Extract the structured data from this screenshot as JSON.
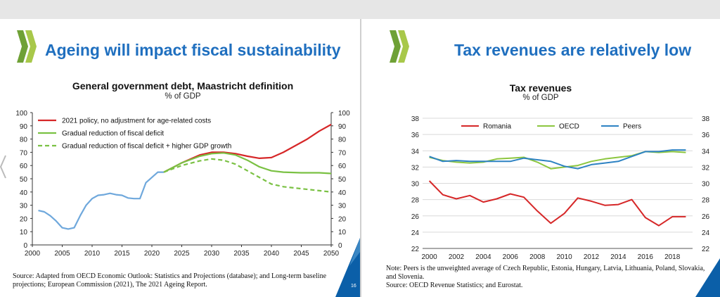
{
  "colors": {
    "title": "#1f6fbf",
    "red": "#d62728",
    "green": "#7ac143",
    "blue": "#2d82c3",
    "light_blue": "#6fa8dc",
    "logo_green": "#6fa136",
    "corner_blue": "#0b5fa8",
    "corner_light": "#5aa0d6"
  },
  "left": {
    "title": "Ageing will impact fiscal sustainability",
    "page_number": "16",
    "source": "Source: Adapted from OECD Economic Outlook: Statistics and Projections (database); and Long-term baseline projections; European Commission (2021), The 2021 Ageing Report.",
    "chart_data": {
      "type": "line",
      "title": "General government debt, Maastricht definition",
      "subtitle": "% of GDP",
      "xlim": [
        2000,
        2050
      ],
      "ylim": [
        0,
        100
      ],
      "x_ticks": [
        "2000",
        "2005",
        "2010",
        "2015",
        "2020",
        "2025",
        "2030",
        "2035",
        "2040",
        "2045",
        "2050"
      ],
      "y_ticks": [
        "0",
        "10",
        "20",
        "30",
        "40",
        "50",
        "60",
        "70",
        "80",
        "90",
        "100"
      ],
      "legend_position": "top-left",
      "series": [
        {
          "name": "2021 policy, no adjustment for age-related costs",
          "color": "#d62728",
          "style": "solid",
          "x": [
            2022,
            2025,
            2028,
            2030,
            2032,
            2034,
            2036,
            2038,
            2040,
            2042,
            2044,
            2046,
            2048,
            2050
          ],
          "y": [
            55,
            62,
            68,
            70,
            70,
            69,
            67,
            65.5,
            66,
            70,
            75,
            80,
            86,
            91
          ]
        },
        {
          "name": "Gradual reduction of fiscal deficit",
          "color": "#7ac143",
          "style": "solid",
          "x": [
            2022,
            2025,
            2028,
            2030,
            2032,
            2034,
            2036,
            2038,
            2040,
            2042,
            2045,
            2048,
            2050
          ],
          "y": [
            55,
            62,
            67,
            69,
            69.5,
            68,
            64,
            59,
            56,
            55,
            54.5,
            54.5,
            54
          ]
        },
        {
          "name": "Gradual reduction of fiscal deficit + higher GDP growth",
          "color": "#7ac143",
          "style": "dashed",
          "x": [
            2022,
            2025,
            2028,
            2030,
            2032,
            2034,
            2036,
            2038,
            2040,
            2042,
            2045,
            2048,
            2050
          ],
          "y": [
            55,
            60,
            63.5,
            65,
            64,
            61,
            56,
            51,
            46,
            44,
            42.5,
            41,
            40
          ]
        },
        {
          "name": "",
          "color": "#6fa8dc",
          "style": "solid",
          "x": [
            2001,
            2002,
            2003,
            2004,
            2005,
            2006,
            2007,
            2008,
            2009,
            2010,
            2011,
            2012,
            2013,
            2014,
            2015,
            2016,
            2017,
            2018,
            2019,
            2020,
            2021,
            2022
          ],
          "y": [
            26,
            25,
            22,
            18,
            13,
            12,
            13,
            22,
            30,
            35,
            37.5,
            38,
            39,
            38,
            37.5,
            35.5,
            35,
            35,
            47,
            51,
            55,
            55
          ]
        }
      ]
    }
  },
  "right": {
    "title": "Tax revenues are relatively low",
    "note": "Note: Peers is the unweighted average of Czech Republic, Estonia, Hungary, Latvia, Lithuania, Poland, Slovakia, and Slovenia.",
    "source": "Source: OECD Revenue Statistics; and Eurostat.",
    "chart_data": {
      "type": "line",
      "title": "Tax revenues",
      "subtitle": "% of GDP",
      "xlim": [
        1999.5,
        2019.5
      ],
      "ylim": [
        22,
        38
      ],
      "x_ticks": [
        "2000",
        "2002",
        "2004",
        "2006",
        "2008",
        "2010",
        "2012",
        "2014",
        "2016",
        "2018"
      ],
      "y_ticks": [
        "22",
        "24",
        "26",
        "28",
        "30",
        "32",
        "34",
        "36",
        "38"
      ],
      "legend_position": "top",
      "series": [
        {
          "name": "Romania",
          "color": "#d62728",
          "style": "solid",
          "x": [
            2000,
            2001,
            2002,
            2003,
            2004,
            2005,
            2006,
            2007,
            2008,
            2009,
            2010,
            2011,
            2012,
            2013,
            2014,
            2015,
            2016,
            2017,
            2018,
            2019
          ],
          "y": [
            30.3,
            28.6,
            28.1,
            28.5,
            27.7,
            28.1,
            28.7,
            28.3,
            26.6,
            25.1,
            26.3,
            28.2,
            27.8,
            27.3,
            27.4,
            28.0,
            25.8,
            24.8,
            25.9,
            25.9
          ]
        },
        {
          "name": "OECD",
          "color": "#8cc63f",
          "style": "solid",
          "x": [
            2000,
            2001,
            2002,
            2003,
            2004,
            2005,
            2006,
            2007,
            2008,
            2009,
            2010,
            2011,
            2012,
            2013,
            2014,
            2015,
            2016,
            2017,
            2018,
            2019
          ],
          "y": [
            33.2,
            32.8,
            32.6,
            32.5,
            32.6,
            33.0,
            33.1,
            33.2,
            32.6,
            31.8,
            32.0,
            32.2,
            32.7,
            33.0,
            33.2,
            33.4,
            33.9,
            33.8,
            33.9,
            33.8
          ]
        },
        {
          "name": "Peers",
          "color": "#2d82c3",
          "style": "solid",
          "x": [
            2000,
            2001,
            2002,
            2003,
            2004,
            2005,
            2006,
            2007,
            2008,
            2009,
            2010,
            2011,
            2012,
            2013,
            2014,
            2015,
            2016,
            2017,
            2018,
            2019
          ],
          "y": [
            33.3,
            32.7,
            32.8,
            32.7,
            32.7,
            32.7,
            32.7,
            33.1,
            32.9,
            32.7,
            32.1,
            31.8,
            32.3,
            32.5,
            32.7,
            33.3,
            33.9,
            33.9,
            34.1,
            34.1
          ]
        }
      ]
    }
  }
}
